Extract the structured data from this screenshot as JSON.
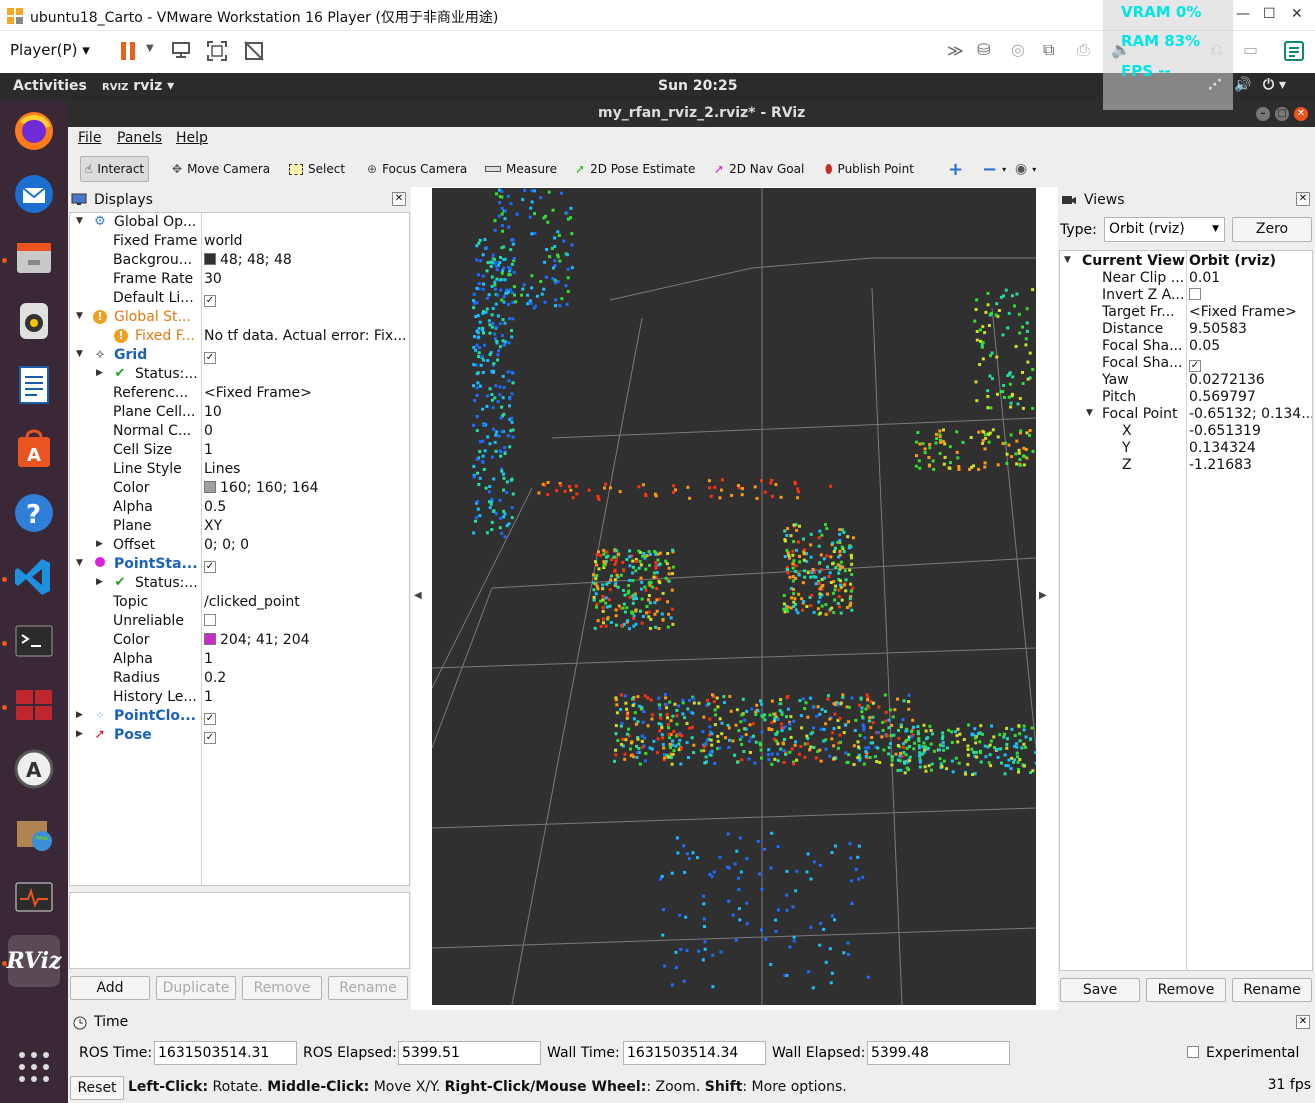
{
  "vm": {
    "title": "ubuntu18_Carto - VMware Workstation 16 Player (仅用于非商业用途)",
    "player_menu": "Player(P)",
    "perf": {
      "vram": "VRAM   0%",
      "ram": "RAM  83%",
      "fps": "FPS --"
    }
  },
  "gnome": {
    "activities": "Activities",
    "app": "rviz",
    "clock": "Sun 20:25"
  },
  "rviz": {
    "title": "my_rfan_rviz_2.rviz* - RViz",
    "menu": {
      "file": "File",
      "panels": "Panels",
      "help": "Help"
    },
    "tools": {
      "interact": "Interact",
      "move_camera": "Move Camera",
      "select": "Select",
      "focus_camera": "Focus Camera",
      "measure": "Measure",
      "pose_estimate": "2D Pose Estimate",
      "nav_goal": "2D Nav Goal",
      "publish_point": "Publish Point"
    }
  },
  "displays": {
    "title": "Displays",
    "rows": [
      {
        "k": "Global Op...",
        "v": ""
      },
      {
        "k": "Fixed Frame",
        "v": "world"
      },
      {
        "k": "Backgrou...",
        "v": "48; 48; 48"
      },
      {
        "k": "Frame Rate",
        "v": "30"
      },
      {
        "k": "Default Li...",
        "v": ""
      },
      {
        "k": "Global St...",
        "v": ""
      },
      {
        "k": "Fixed F...",
        "v": "No tf data.  Actual error: Fix..."
      },
      {
        "k": "Grid",
        "v": ""
      },
      {
        "k": "Status:...",
        "v": ""
      },
      {
        "k": "Referenc...",
        "v": "<Fixed Frame>"
      },
      {
        "k": "Plane Cell...",
        "v": "10"
      },
      {
        "k": "Normal C...",
        "v": "0"
      },
      {
        "k": "Cell Size",
        "v": "1"
      },
      {
        "k": "Line Style",
        "v": "Lines"
      },
      {
        "k": "Color",
        "v": "160; 160; 164"
      },
      {
        "k": "Alpha",
        "v": "0.5"
      },
      {
        "k": "Plane",
        "v": "XY"
      },
      {
        "k": "Offset",
        "v": "0; 0; 0"
      },
      {
        "k": "PointSta...",
        "v": ""
      },
      {
        "k": "Status:...",
        "v": ""
      },
      {
        "k": "Topic",
        "v": "/clicked_point"
      },
      {
        "k": "Unreliable",
        "v": ""
      },
      {
        "k": "Color",
        "v": "204; 41; 204"
      },
      {
        "k": "Alpha",
        "v": "1"
      },
      {
        "k": "Radius",
        "v": "0.2"
      },
      {
        "k": "History Le...",
        "v": "1"
      },
      {
        "k": "PointClo...",
        "v": ""
      },
      {
        "k": "Pose",
        "v": ""
      }
    ],
    "buttons": {
      "add": "Add",
      "duplicate": "Duplicate",
      "remove": "Remove",
      "rename": "Rename"
    }
  },
  "views": {
    "title": "Views",
    "type_label": "Type:",
    "type_value": "Orbit (rviz)",
    "zero": "Zero",
    "rows": [
      {
        "k": "Current View",
        "v": "Orbit (rviz)"
      },
      {
        "k": "Near Clip ...",
        "v": "0.01"
      },
      {
        "k": "Invert Z A...",
        "v": ""
      },
      {
        "k": "Target Fr...",
        "v": "<Fixed Frame>"
      },
      {
        "k": "Distance",
        "v": "9.50583"
      },
      {
        "k": "Focal Sha...",
        "v": "0.05"
      },
      {
        "k": "Focal Sha...",
        "v": ""
      },
      {
        "k": "Yaw",
        "v": "0.0272136"
      },
      {
        "k": "Pitch",
        "v": "0.569797"
      },
      {
        "k": "Focal Point",
        "v": "-0.65132; 0.134..."
      },
      {
        "k": "X",
        "v": "-0.651319"
      },
      {
        "k": "Y",
        "v": "0.134324"
      },
      {
        "k": "Z",
        "v": "-1.21683"
      }
    ],
    "buttons": {
      "save": "Save",
      "remove": "Remove",
      "rename": "Rename"
    }
  },
  "time": {
    "title": "Time",
    "ros_time_label": "ROS Time:",
    "ros_time": "1631503514.31",
    "ros_elapsed_label": "ROS Elapsed:",
    "ros_elapsed": "5399.51",
    "wall_time_label": "Wall Time:",
    "wall_time": "1631503514.34",
    "wall_elapsed_label": "Wall Elapsed:",
    "wall_elapsed": "5399.48",
    "experimental": "Experimental",
    "reset": "Reset",
    "hint_b1": "Left-Click:",
    "hint_t1": " Rotate. ",
    "hint_b2": "Middle-Click:",
    "hint_t2": " Move X/Y. ",
    "hint_b3": "Right-Click/Mouse Wheel:",
    "hint_t3": ": Zoom. ",
    "hint_b4": "Shift",
    "hint_t4": ": More options.",
    "fps": "31 fps"
  },
  "colors": {
    "background": "#303030",
    "grid": "#a0a0a4",
    "point_stamped": "#cc29cc"
  }
}
